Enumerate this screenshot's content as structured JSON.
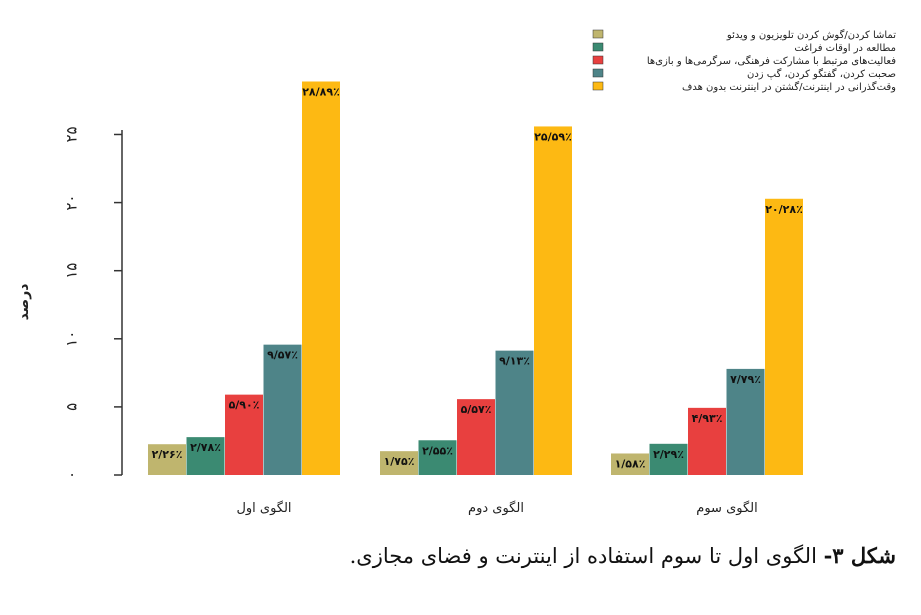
{
  "chart_data": {
    "type": "bar",
    "ylabel": "درصد",
    "ylim": [
      0,
      29
    ],
    "yticks": [
      0,
      5,
      10,
      15,
      20,
      25
    ],
    "ytick_labels": [
      "۰",
      "۵",
      "۱۰",
      "۱۵",
      "۲۰",
      "۲۵"
    ],
    "categories": [
      "الگوی اول",
      "الگوی دوم",
      "الگوی سوم"
    ],
    "legend_position": "top-right",
    "series": [
      {
        "name": "تماشا کردن/گوش کردن تلویزیون و ویدئو",
        "color": "#bfb56e",
        "values": [
          2.26,
          1.75,
          1.58
        ],
        "labels": [
          "۲/۲۶٪",
          "۱/۷۵٪",
          "۱/۵۸٪"
        ]
      },
      {
        "name": "مطالعه در اوقات فراغت",
        "color": "#3b8a72",
        "values": [
          2.78,
          2.55,
          2.29
        ],
        "labels": [
          "۲/۷۸٪",
          "۲/۵۵٪",
          "۲/۲۹٪"
        ]
      },
      {
        "name": "فعالیت‌های مرتبط با مشارکت فرهنگی، سرگرمی‌ها و بازی‌ها",
        "color": "#e8403f",
        "values": [
          5.9,
          5.57,
          4.93
        ],
        "labels": [
          "۵/۹۰٪",
          "۵/۵۷٪",
          "۴/۹۳٪"
        ]
      },
      {
        "name": "صحبت کردن، گفتگو کردن، گپ زدن",
        "color": "#4e8488",
        "values": [
          9.57,
          9.13,
          7.79
        ],
        "labels": [
          "۹/۵۷٪",
          "۹/۱۳٪",
          "۷/۷۹٪"
        ]
      },
      {
        "name": "وقت‌گذرانی در اینترنت/گشتن در اینترنت بدون هدف",
        "color": "#fdb913",
        "values": [
          28.89,
          25.59,
          20.28
        ],
        "labels": [
          "۲۸/۸۹٪",
          "۲۵/۵۹٪",
          "۲۰/۲۸٪"
        ]
      }
    ]
  },
  "caption": {
    "number": "شکل ۳-",
    "text": " الگوی اول تا سوم استفاده از اینترنت و فضای مجازی."
  }
}
